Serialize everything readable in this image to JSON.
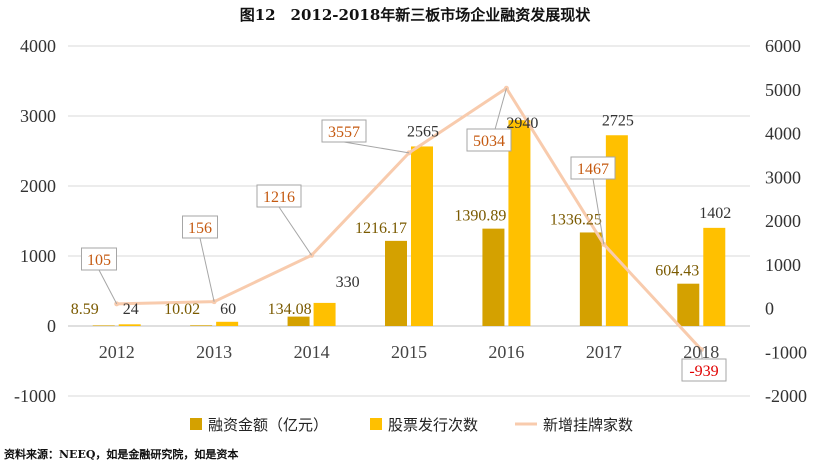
{
  "chart_data": {
    "type": "bar",
    "title": "图12　2012-2018年新三板市场企业融资发展现状",
    "categories": [
      "2012",
      "2013",
      "2014",
      "2015",
      "2016",
      "2017",
      "2018"
    ],
    "y_left": {
      "min": -1000,
      "max": 4000,
      "step": 1000,
      "ticks": [
        "4000",
        "3000",
        "2000",
        "1000",
        "0",
        "-1000"
      ]
    },
    "y_right": {
      "min": -2000,
      "max": 6000,
      "step": 1000,
      "ticks": [
        "6000",
        "5000",
        "4000",
        "3000",
        "2000",
        "1000",
        "0",
        "-1000",
        "-2000"
      ]
    },
    "series": [
      {
        "name": "融资金额（亿元）",
        "kind": "bar",
        "axis": "left",
        "color": "#D4A100",
        "values": [
          8.59,
          10.02,
          134.08,
          1216.17,
          1390.89,
          1336.25,
          604.43
        ],
        "labels": [
          "8.59",
          "10.02",
          "134.08",
          "1216.17",
          "1390.89",
          "1336.25",
          "604.43"
        ]
      },
      {
        "name": "股票发行次数",
        "kind": "bar",
        "axis": "left",
        "color": "#FFC000",
        "values": [
          24,
          60,
          330,
          2565,
          2940,
          2725,
          1402
        ],
        "labels": [
          "24",
          "60",
          "330",
          "2565",
          "2940",
          "2725",
          "1402"
        ]
      },
      {
        "name": "新增挂牌家数",
        "kind": "line",
        "axis": "right",
        "color": "#F8CBAD",
        "values": [
          105,
          156,
          1216,
          3557,
          5034,
          1467,
          -939
        ],
        "labels": [
          "105",
          "156",
          "1216",
          "3557",
          "5034",
          "1467",
          "-939"
        ]
      }
    ],
    "legend_position": "bottom",
    "grid": true
  },
  "source": "资料来源：NEEQ，如是金融研究院，如是资本"
}
